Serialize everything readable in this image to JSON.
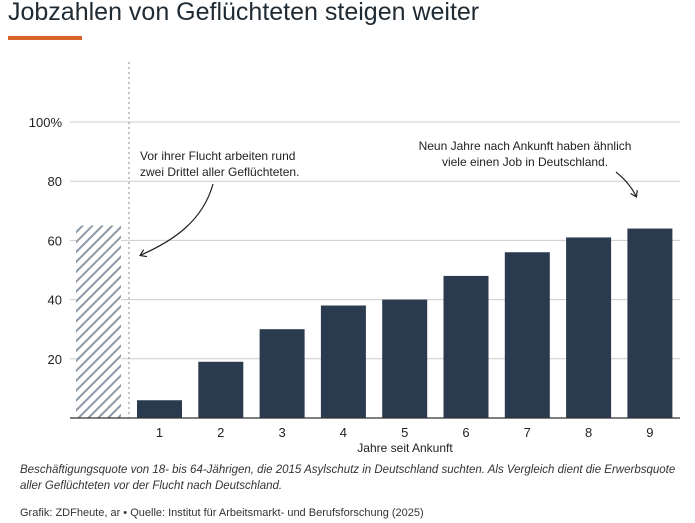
{
  "title": "Jobzahlen von Geflüchteten steigen weiter",
  "colors": {
    "accent": "#d9622b",
    "bar": "#2a3a4f",
    "hatch": "#8d99a6",
    "grid": "#cccccc",
    "axis": "#333333",
    "text": "#222222"
  },
  "chart_data": {
    "type": "bar",
    "title": "Jobzahlen von Geflüchteten steigen weiter",
    "xlabel": "Jahre seit Ankunft",
    "ylabel": "",
    "ylim": [
      0,
      100
    ],
    "y_ticks": [
      {
        "value": 20,
        "label": "20"
      },
      {
        "value": 40,
        "label": "40"
      },
      {
        "value": 60,
        "label": "60"
      },
      {
        "value": 80,
        "label": "80"
      },
      {
        "value": 100,
        "label": "100%"
      }
    ],
    "grid": true,
    "reference_bar": {
      "value": 65,
      "style": "hatched"
    },
    "categories": [
      "1",
      "2",
      "3",
      "4",
      "5",
      "6",
      "7",
      "8",
      "9"
    ],
    "values": [
      6,
      19,
      30,
      38,
      40,
      48,
      56,
      61,
      64
    ],
    "annotations": [
      {
        "text_lines": [
          "Vor ihrer Flucht arbeiten rund",
          "zwei Drittel aller Geflüchteten."
        ]
      },
      {
        "text_lines": [
          "Neun Jahre nach Ankunft haben ähnlich",
          "viele einen Job in Deutschland."
        ]
      }
    ]
  },
  "caption": "Beschäftigungsquote von 18- bis 64-Jährigen, die 2015 Asylschutz in Deutschland suchten. Als Vergleich dient die Erwerbsquote aller Geflüchteten vor der Flucht nach Deutschland.",
  "source": "Grafik: ZDFheute, ar • Quelle: Institut für Arbeitsmarkt- und Berufsforschung (2025)"
}
